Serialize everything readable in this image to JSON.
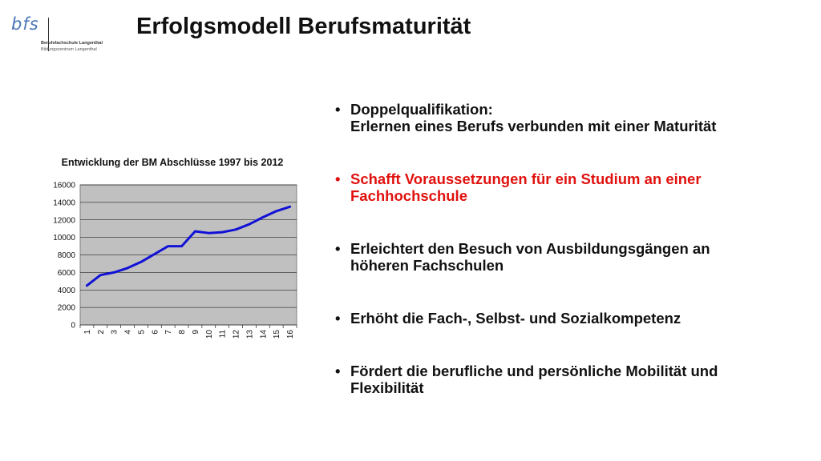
{
  "logo": {
    "mark": "bfs",
    "line1": "Berufsfachschule Langenthal",
    "line2": "Bildungszentrum Langenthal"
  },
  "title": "Erfolgsmodell Berufsmaturität",
  "bullets": [
    {
      "lines": [
        "Doppelqualifikation:",
        "Erlernen eines Berufs verbunden mit einer Maturität"
      ],
      "highlight": false
    },
    {
      "lines": [
        "Schafft Voraussetzungen für ein Studium an einer",
        "Fachhochschule"
      ],
      "highlight": true
    },
    {
      "lines": [
        "Erleichtert den Besuch von Ausbildungsgängen an",
        "höheren Fachschulen"
      ],
      "highlight": false
    },
    {
      "lines": [
        "Erhöht die Fach-, Selbst- und Sozialkompetenz"
      ],
      "highlight": false
    },
    {
      "lines": [
        "Fördert die berufliche und persönliche Mobilität und",
        "Flexibilität"
      ],
      "highlight": false
    }
  ],
  "colors": {
    "highlight": "#e0120f",
    "line": "#1212d6",
    "plot_bg": "#c0c0c0"
  },
  "chart_data": {
    "type": "line",
    "title": "Entwicklung der BM Abschlüsse 1997 bis 2012",
    "categories": [
      "1",
      "2",
      "3",
      "4",
      "5",
      "6",
      "7",
      "8",
      "9",
      "10",
      "11",
      "12",
      "13",
      "14",
      "15",
      "16"
    ],
    "series": [
      {
        "values": [
          4500,
          5700,
          6000,
          6500,
          7200,
          8100,
          9000,
          9000,
          10700,
          10500,
          10600,
          10900,
          11500,
          12300,
          13000,
          13500
        ]
      }
    ],
    "ylim": [
      0,
      16000
    ],
    "yticks": [
      0,
      2000,
      4000,
      6000,
      8000,
      10000,
      12000,
      14000,
      16000
    ],
    "grid": true,
    "legend": "none"
  }
}
